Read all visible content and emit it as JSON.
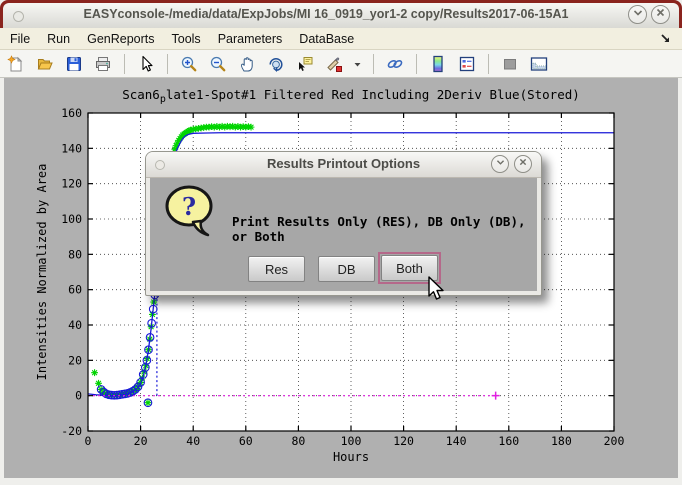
{
  "window": {
    "title": "EASYconsole-/media/data/ExpJobs/MI 16_0919_yor1-2 copy/Results2017-06-15A1",
    "shade_button": "v",
    "close_button": "x"
  },
  "menu": {
    "items": [
      "File",
      "Run",
      "GenReports",
      "Tools",
      "Parameters",
      "DataBase"
    ],
    "overflow_icon": "dock-arrow-icon"
  },
  "toolbar": {
    "groups": [
      [
        "new-figure",
        "open-file",
        "save-figure",
        "print-figure"
      ],
      [
        "pointer"
      ],
      [
        "zoom-in",
        "zoom-out",
        "pan",
        "rotate-3d",
        "data-cursor",
        "brush-data",
        "brush-dropdown"
      ],
      [
        "link-plot"
      ],
      [
        "insert-colorbar",
        "insert-legend"
      ],
      [
        "hide-plot-tools",
        "show-plot-tools"
      ]
    ]
  },
  "chart_data": {
    "type": "scatter",
    "title": "Scan6_plate1-Spot#1 Filtered Red Including 2Deriv Blue(Stored)",
    "title_parts": {
      "pre": "Scan6",
      "sub": "p",
      "post": "late1-Spot#1 Filtered Red Including 2Deriv Blue(Stored)"
    },
    "xlabel": "Hours",
    "ylabel": "Intensities Normalized by Area",
    "xlim": [
      0,
      200
    ],
    "ylim": [
      -20,
      160
    ],
    "x_ticks": [
      0,
      20,
      40,
      60,
      80,
      100,
      120,
      140,
      160,
      180,
      200
    ],
    "y_ticks": [
      -20,
      0,
      20,
      40,
      60,
      80,
      100,
      120,
      140,
      160
    ],
    "grid": true,
    "colors": {
      "data": "#00d400",
      "fit": "#1a1ad8",
      "baseline": "#e020e0"
    },
    "series": [
      {
        "name": "filtered-data",
        "marker": "asterisk",
        "color": "#00d400",
        "points": [
          [
            2.5,
            13
          ],
          [
            4,
            7
          ],
          [
            5,
            3.5
          ],
          [
            6,
            2
          ],
          [
            7,
            1
          ],
          [
            8,
            0.5
          ],
          [
            9,
            0.3
          ],
          [
            10,
            0.2
          ],
          [
            11,
            0.3
          ],
          [
            12,
            0.5
          ],
          [
            13,
            0.8
          ],
          [
            14,
            1
          ],
          [
            15,
            1.3
          ],
          [
            16,
            1.8
          ],
          [
            17,
            2.5
          ],
          [
            18,
            3.5
          ],
          [
            19,
            5
          ],
          [
            20,
            7.5
          ],
          [
            20.7,
            10
          ],
          [
            21.3,
            13.5
          ],
          [
            22,
            17
          ],
          [
            22.5,
            21
          ],
          [
            22.8,
            -4
          ],
          [
            23,
            26
          ],
          [
            23.5,
            32
          ],
          [
            24,
            39
          ],
          [
            24.5,
            46
          ],
          [
            25,
            53
          ],
          [
            25.5,
            60
          ],
          [
            26,
            67
          ],
          [
            26.5,
            74
          ],
          [
            27,
            81
          ],
          [
            27.5,
            88
          ],
          [
            28,
            95
          ],
          [
            28.5,
            101
          ],
          [
            29,
            107
          ],
          [
            29.5,
            112
          ],
          [
            30,
            117
          ],
          [
            30.5,
            122
          ],
          [
            31,
            126.5
          ],
          [
            31.5,
            130.5
          ],
          [
            32,
            134
          ],
          [
            32.5,
            137
          ],
          [
            33,
            139.5
          ],
          [
            33.5,
            141.5
          ],
          [
            34,
            143
          ],
          [
            34.5,
            144.5
          ],
          [
            35,
            145.5
          ],
          [
            35.5,
            146.5
          ],
          [
            36,
            147.5
          ],
          [
            36.5,
            148
          ],
          [
            37,
            148.5
          ],
          [
            37.5,
            149
          ],
          [
            38,
            149.5
          ],
          [
            38.5,
            150
          ],
          [
            39,
            150.3
          ],
          [
            40,
            150.8
          ],
          [
            41,
            151
          ],
          [
            42,
            151.3
          ],
          [
            43,
            151.5
          ],
          [
            44,
            151.8
          ],
          [
            45,
            152
          ],
          [
            46,
            152
          ],
          [
            47,
            152.3
          ],
          [
            48,
            152
          ],
          [
            49,
            152.4
          ],
          [
            50,
            152
          ],
          [
            51,
            152.5
          ],
          [
            52,
            152
          ],
          [
            53,
            152.5
          ],
          [
            54,
            152.2
          ],
          [
            55,
            152.5
          ],
          [
            56,
            152
          ],
          [
            57,
            152.4
          ],
          [
            58,
            152
          ],
          [
            59,
            152.3
          ],
          [
            60,
            152
          ],
          [
            61,
            152.3
          ],
          [
            62,
            152
          ]
        ]
      },
      {
        "name": "stored-fit-line",
        "type": "line",
        "color": "#1a1ad8",
        "points": [
          [
            0,
            1
          ],
          [
            3,
            0.5
          ],
          [
            6,
            0.2
          ],
          [
            9,
            0
          ],
          [
            12,
            0.2
          ],
          [
            15,
            1
          ],
          [
            17,
            2.2
          ],
          [
            19,
            4.5
          ],
          [
            20,
            7
          ],
          [
            21,
            11
          ],
          [
            22,
            17
          ],
          [
            23,
            26
          ],
          [
            24,
            38
          ],
          [
            25,
            52
          ],
          [
            26,
            66
          ],
          [
            27,
            80
          ],
          [
            28,
            93
          ],
          [
            29,
            105
          ],
          [
            30,
            115
          ],
          [
            31,
            123
          ],
          [
            32,
            130
          ],
          [
            33,
            136
          ],
          [
            34,
            140
          ],
          [
            35,
            143
          ],
          [
            36,
            145.5
          ],
          [
            37,
            147
          ],
          [
            38,
            147.8
          ],
          [
            39,
            148.2
          ],
          [
            40,
            148.5
          ],
          [
            45,
            148.7
          ],
          [
            50,
            148.8
          ],
          [
            200,
            148.8
          ]
        ]
      },
      {
        "name": "stored-fit-markers",
        "marker": "circle",
        "color": "#1a1ad8",
        "points": [
          [
            5,
            3.5
          ],
          [
            6,
            2
          ],
          [
            7,
            1
          ],
          [
            8,
            0.5
          ],
          [
            9,
            0.3
          ],
          [
            10,
            0.2
          ],
          [
            11,
            0.3
          ],
          [
            12,
            0.5
          ],
          [
            13,
            0.8
          ],
          [
            14,
            1
          ],
          [
            15,
            1.3
          ],
          [
            16,
            1.8
          ],
          [
            17,
            2.5
          ],
          [
            18,
            3.5
          ],
          [
            19,
            5
          ],
          [
            20,
            7.5
          ],
          [
            21,
            12
          ],
          [
            21.8,
            16
          ],
          [
            22.4,
            20
          ],
          [
            22.8,
            -4
          ],
          [
            23,
            26
          ],
          [
            23.6,
            33
          ],
          [
            24.2,
            41
          ],
          [
            24.8,
            49
          ],
          [
            25.4,
            57
          ]
        ]
      },
      {
        "name": "rise-marker-vline",
        "type": "vline",
        "style": "dotted",
        "color": "#1a1ad8",
        "x": 26.2,
        "y_range": [
          0,
          57
        ],
        "top_marker": "triangle"
      },
      {
        "name": "baseline",
        "type": "hline",
        "style": "dotted",
        "color": "#e020e0",
        "y": 0,
        "x_range": [
          0,
          155
        ],
        "end_marker": "plus"
      }
    ]
  },
  "dialog": {
    "title": "Results Printout Options",
    "message": "Print Results Only (RES), DB Only (DB), or Both",
    "buttons": [
      "Res",
      "DB",
      "Both"
    ],
    "icon": "question-bubble-icon",
    "focus_ring_color": "#b5688a"
  }
}
